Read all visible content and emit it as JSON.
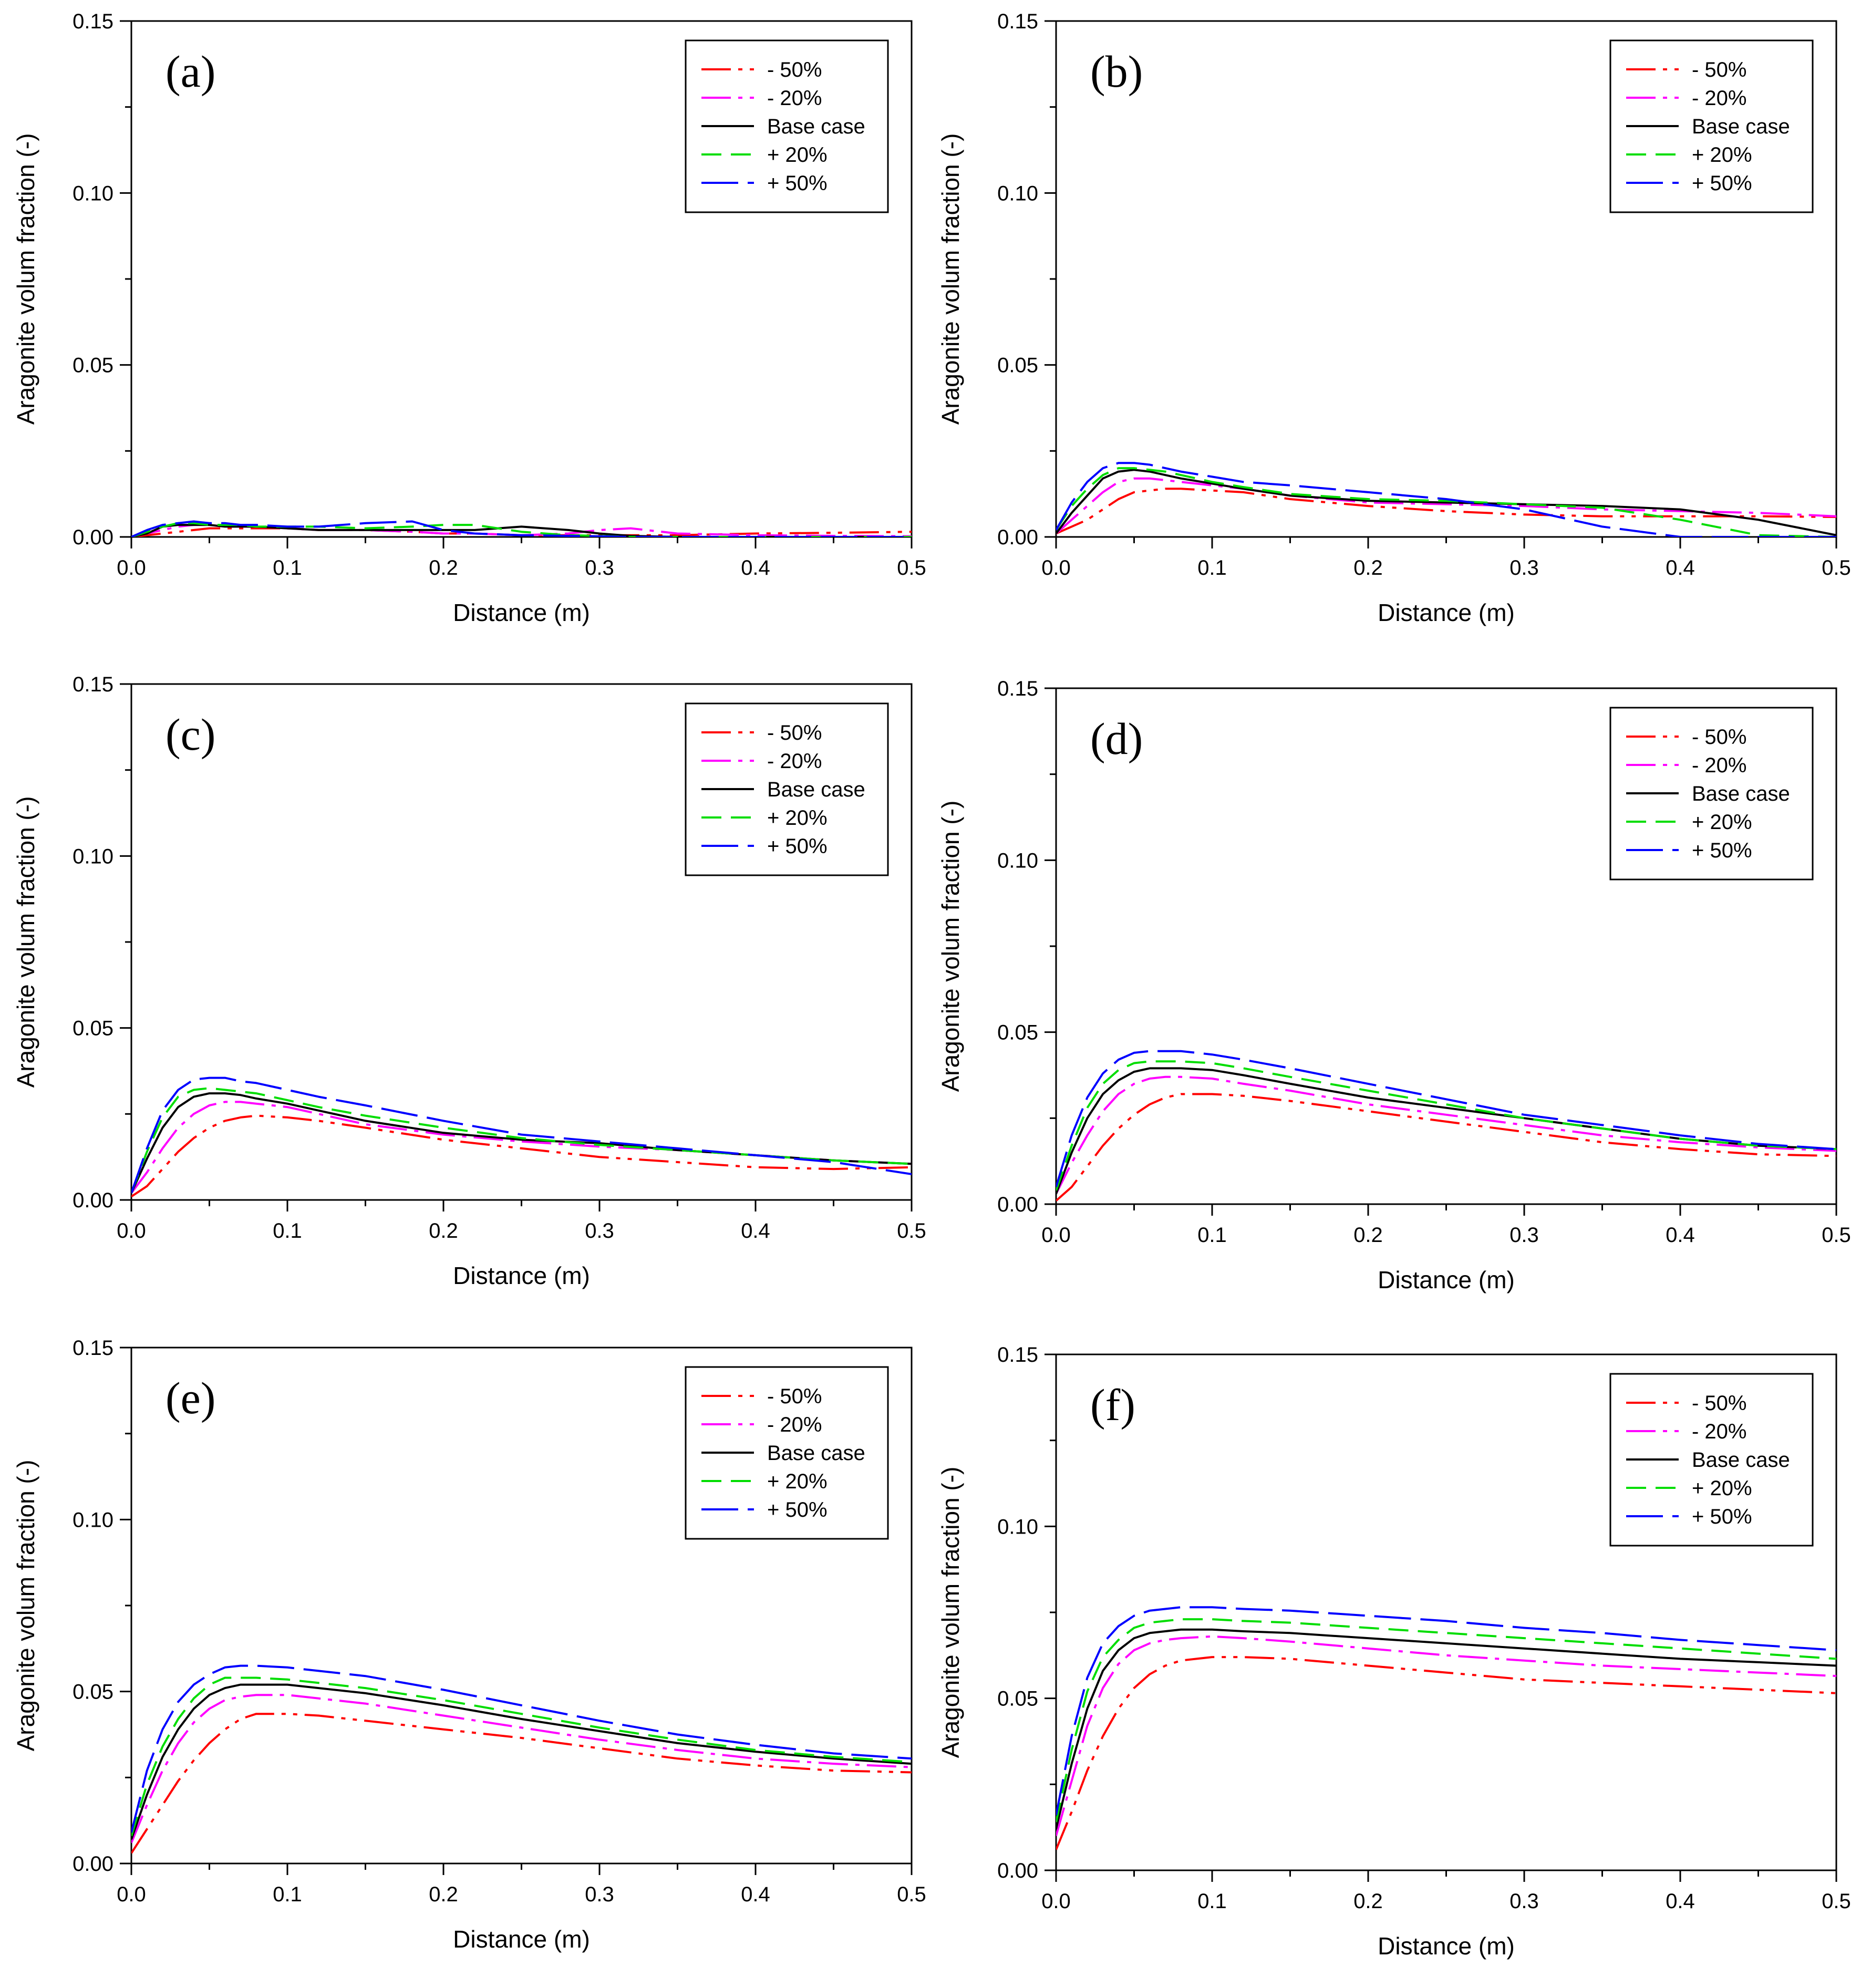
{
  "figure": {
    "panel_count": 6
  },
  "colors": {
    "minus50": "#ff0000",
    "minus20": "#ff00ff",
    "base": "#000000",
    "plus20": "#00dd00",
    "plus50": "#0000ff"
  },
  "chart_data": [
    {
      "type": "line",
      "panel_label": "(a)",
      "xlabel": "Distance (m)",
      "ylabel": "Aragonite volum fraction (-)",
      "xlim": [
        0,
        0.5
      ],
      "ylim": [
        0,
        0.15
      ],
      "xticks": [
        "0.0",
        "0.1",
        "0.2",
        "0.3",
        "0.4",
        "0.5"
      ],
      "yticks": [
        "0.00",
        "0.05",
        "0.10",
        "0.15"
      ],
      "legend_position": "top-right",
      "x": [
        0,
        0.01,
        0.02,
        0.03,
        0.04,
        0.05,
        0.06,
        0.07,
        0.08,
        0.1,
        0.12,
        0.15,
        0.18,
        0.2,
        0.22,
        0.25,
        0.28,
        0.3,
        0.32,
        0.35,
        0.4,
        0.45,
        0.5
      ],
      "series": [
        {
          "name": "- 50%",
          "key": "minus50",
          "values": [
            0,
            0.0005,
            0.001,
            0.0015,
            0.002,
            0.0025,
            0.0025,
            0.0025,
            0.0025,
            0.0025,
            0.002,
            0.002,
            0.0015,
            0.001,
            0.001,
            0.0005,
            0.0005,
            0.0005,
            0.0005,
            0.0005,
            0.001,
            0.0012,
            0.0015
          ]
        },
        {
          "name": "- 20%",
          "key": "minus20",
          "values": [
            0,
            0.001,
            0.002,
            0.003,
            0.0035,
            0.0035,
            0.003,
            0.003,
            0.003,
            0.0025,
            0.002,
            0.002,
            0.0015,
            0.001,
            0.001,
            0.0005,
            0.001,
            0.002,
            0.0025,
            0.001,
            0.0005,
            0.0003,
            0.0002
          ]
        },
        {
          "name": "Base case",
          "key": "base",
          "values": [
            0,
            0.001,
            0.003,
            0.0035,
            0.0035,
            0.0035,
            0.003,
            0.003,
            0.003,
            0.0025,
            0.002,
            0.002,
            0.002,
            0.002,
            0.002,
            0.003,
            0.002,
            0.001,
            0.0003,
            0,
            0,
            0,
            0
          ]
        },
        {
          "name": "+ 20%",
          "key": "plus20",
          "values": [
            0,
            0.0015,
            0.003,
            0.004,
            0.004,
            0.0035,
            0.0035,
            0.0035,
            0.003,
            0.003,
            0.003,
            0.0025,
            0.003,
            0.0035,
            0.0035,
            0.0015,
            0.0005,
            0.0003,
            0,
            0,
            0,
            0,
            0
          ]
        },
        {
          "name": "+ 50%",
          "key": "plus50",
          "values": [
            0,
            0.002,
            0.0035,
            0.004,
            0.0045,
            0.004,
            0.004,
            0.0035,
            0.0035,
            0.003,
            0.003,
            0.004,
            0.0045,
            0.002,
            0.001,
            0.0005,
            0.0003,
            0.0002,
            0,
            0,
            0,
            0,
            0
          ]
        }
      ]
    },
    {
      "type": "line",
      "panel_label": "(b)",
      "xlabel": "Distance (m)",
      "ylabel": "Aragonite volum fraction (-)",
      "xlim": [
        0,
        0.5
      ],
      "ylim": [
        0,
        0.15
      ],
      "xticks": [
        "0.0",
        "0.1",
        "0.2",
        "0.3",
        "0.4",
        "0.5"
      ],
      "yticks": [
        "0.00",
        "0.05",
        "0.10",
        "0.15"
      ],
      "legend_position": "top-right",
      "x": [
        0,
        0.01,
        0.02,
        0.03,
        0.04,
        0.05,
        0.06,
        0.07,
        0.08,
        0.1,
        0.12,
        0.15,
        0.2,
        0.25,
        0.3,
        0.35,
        0.4,
        0.45,
        0.5
      ],
      "series": [
        {
          "name": "- 50%",
          "key": "minus50",
          "values": [
            0.001,
            0.003,
            0.005,
            0.008,
            0.011,
            0.013,
            0.0135,
            0.014,
            0.014,
            0.0135,
            0.013,
            0.011,
            0.009,
            0.0075,
            0.0065,
            0.006,
            0.006,
            0.006,
            0.0058
          ]
        },
        {
          "name": "- 20%",
          "key": "minus20",
          "values": [
            0.001,
            0.005,
            0.009,
            0.013,
            0.016,
            0.017,
            0.017,
            0.0165,
            0.016,
            0.015,
            0.014,
            0.012,
            0.01,
            0.0095,
            0.009,
            0.008,
            0.0075,
            0.007,
            0.006
          ]
        },
        {
          "name": "Base case",
          "key": "base",
          "values": [
            0.001,
            0.007,
            0.012,
            0.017,
            0.019,
            0.0195,
            0.019,
            0.018,
            0.017,
            0.0155,
            0.014,
            0.012,
            0.0105,
            0.01,
            0.0095,
            0.009,
            0.008,
            0.005,
            0.0005
          ]
        },
        {
          "name": "+ 20%",
          "key": "plus20",
          "values": [
            0.002,
            0.009,
            0.014,
            0.018,
            0.02,
            0.02,
            0.0195,
            0.019,
            0.018,
            0.016,
            0.0145,
            0.0125,
            0.011,
            0.0105,
            0.0095,
            0.0085,
            0.005,
            0.0005,
            0
          ]
        },
        {
          "name": "+ 50%",
          "key": "plus50",
          "values": [
            0.002,
            0.01,
            0.016,
            0.02,
            0.0215,
            0.0215,
            0.021,
            0.02,
            0.019,
            0.0175,
            0.016,
            0.015,
            0.013,
            0.011,
            0.008,
            0.003,
            0,
            0,
            0
          ]
        }
      ]
    },
    {
      "type": "line",
      "panel_label": "(c)",
      "xlabel": "Distance (m)",
      "ylabel": "Aragonite volum fraction (-)",
      "xlim": [
        0,
        0.5
      ],
      "ylim": [
        0,
        0.15
      ],
      "xticks": [
        "0.0",
        "0.1",
        "0.2",
        "0.3",
        "0.4",
        "0.5"
      ],
      "yticks": [
        "0.00",
        "0.05",
        "0.10",
        "0.15"
      ],
      "legend_position": "top-right",
      "x": [
        0,
        0.01,
        0.02,
        0.03,
        0.04,
        0.05,
        0.06,
        0.07,
        0.08,
        0.1,
        0.12,
        0.15,
        0.2,
        0.25,
        0.3,
        0.35,
        0.4,
        0.45,
        0.5
      ],
      "series": [
        {
          "name": "- 50%",
          "key": "minus50",
          "values": [
            0.001,
            0.004,
            0.009,
            0.014,
            0.018,
            0.021,
            0.023,
            0.024,
            0.0245,
            0.024,
            0.023,
            0.021,
            0.0175,
            0.015,
            0.0125,
            0.011,
            0.0095,
            0.009,
            0.0095
          ]
        },
        {
          "name": "- 20%",
          "key": "minus20",
          "values": [
            0.002,
            0.008,
            0.015,
            0.021,
            0.025,
            0.0275,
            0.0285,
            0.0285,
            0.028,
            0.027,
            0.025,
            0.022,
            0.019,
            0.017,
            0.0155,
            0.0145,
            0.013,
            0.0115,
            0.0105
          ]
        },
        {
          "name": "Base case",
          "key": "base",
          "values": [
            0.002,
            0.012,
            0.021,
            0.027,
            0.03,
            0.031,
            0.031,
            0.0305,
            0.0295,
            0.028,
            0.026,
            0.023,
            0.0195,
            0.0175,
            0.0165,
            0.0145,
            0.013,
            0.0115,
            0.0105
          ]
        },
        {
          "name": "+ 20%",
          "key": "plus20",
          "values": [
            0.002,
            0.014,
            0.024,
            0.03,
            0.032,
            0.0325,
            0.032,
            0.0315,
            0.031,
            0.029,
            0.027,
            0.0245,
            0.021,
            0.018,
            0.016,
            0.0145,
            0.013,
            0.0115,
            0.0105
          ]
        },
        {
          "name": "+ 50%",
          "key": "plus50",
          "values": [
            0.002,
            0.015,
            0.026,
            0.032,
            0.035,
            0.0355,
            0.0355,
            0.0345,
            0.034,
            0.032,
            0.03,
            0.0275,
            0.023,
            0.019,
            0.017,
            0.015,
            0.013,
            0.011,
            0.0075
          ]
        }
      ]
    },
    {
      "type": "line",
      "panel_label": "(d)",
      "xlabel": "Distance (m)",
      "ylabel": "Aragonite volum fraction (-)",
      "xlim": [
        0,
        0.5
      ],
      "ylim": [
        0,
        0.15
      ],
      "xticks": [
        "0.0",
        "0.1",
        "0.2",
        "0.3",
        "0.4",
        "0.5"
      ],
      "yticks": [
        "0.00",
        "0.05",
        "0.10",
        "0.15"
      ],
      "legend_position": "top-right",
      "x": [
        0,
        0.01,
        0.02,
        0.03,
        0.04,
        0.05,
        0.06,
        0.07,
        0.08,
        0.1,
        0.12,
        0.15,
        0.2,
        0.25,
        0.3,
        0.35,
        0.4,
        0.45,
        0.5
      ],
      "series": [
        {
          "name": "- 50%",
          "key": "minus50",
          "values": [
            0.001,
            0.005,
            0.011,
            0.017,
            0.022,
            0.026,
            0.029,
            0.031,
            0.032,
            0.032,
            0.0315,
            0.03,
            0.027,
            0.024,
            0.021,
            0.018,
            0.016,
            0.0145,
            0.014
          ]
        },
        {
          "name": "- 20%",
          "key": "minus20",
          "values": [
            0.003,
            0.012,
            0.02,
            0.027,
            0.032,
            0.035,
            0.0365,
            0.037,
            0.037,
            0.0365,
            0.035,
            0.033,
            0.029,
            0.026,
            0.023,
            0.02,
            0.018,
            0.0165,
            0.0155
          ]
        },
        {
          "name": "Base case",
          "key": "base",
          "values": [
            0.003,
            0.015,
            0.025,
            0.032,
            0.036,
            0.0385,
            0.0395,
            0.0395,
            0.0395,
            0.039,
            0.0375,
            0.035,
            0.031,
            0.028,
            0.025,
            0.022,
            0.019,
            0.017,
            0.016
          ]
        },
        {
          "name": "+ 20%",
          "key": "plus20",
          "values": [
            0.004,
            0.017,
            0.028,
            0.035,
            0.039,
            0.041,
            0.0415,
            0.0415,
            0.0415,
            0.041,
            0.0395,
            0.037,
            0.033,
            0.029,
            0.025,
            0.022,
            0.019,
            0.017,
            0.016
          ]
        },
        {
          "name": "+ 50%",
          "key": "plus50",
          "values": [
            0.005,
            0.02,
            0.031,
            0.038,
            0.042,
            0.044,
            0.0445,
            0.0445,
            0.0445,
            0.0435,
            0.042,
            0.0395,
            0.035,
            0.0305,
            0.026,
            0.023,
            0.02,
            0.0175,
            0.016
          ]
        }
      ]
    },
    {
      "type": "line",
      "panel_label": "(e)",
      "xlabel": "Distance (m)",
      "ylabel": "Aragonite volum fraction (-)",
      "xlim": [
        0,
        0.5
      ],
      "ylim": [
        0,
        0.15
      ],
      "xticks": [
        "0.0",
        "0.1",
        "0.2",
        "0.3",
        "0.4",
        "0.5"
      ],
      "yticks": [
        "0.00",
        "0.05",
        "0.10",
        "0.15"
      ],
      "legend_position": "top-right",
      "x": [
        0,
        0.01,
        0.02,
        0.03,
        0.04,
        0.05,
        0.06,
        0.07,
        0.08,
        0.1,
        0.12,
        0.15,
        0.2,
        0.25,
        0.3,
        0.35,
        0.4,
        0.45,
        0.5
      ],
      "series": [
        {
          "name": "- 50%",
          "key": "minus50",
          "values": [
            0.003,
            0.01,
            0.017,
            0.024,
            0.03,
            0.035,
            0.039,
            0.042,
            0.0435,
            0.0435,
            0.043,
            0.0415,
            0.039,
            0.0365,
            0.0335,
            0.0305,
            0.0285,
            0.027,
            0.0265
          ]
        },
        {
          "name": "- 20%",
          "key": "minus20",
          "values": [
            0.006,
            0.017,
            0.027,
            0.035,
            0.041,
            0.045,
            0.0475,
            0.0485,
            0.049,
            0.049,
            0.048,
            0.0465,
            0.043,
            0.0395,
            0.036,
            0.033,
            0.0305,
            0.029,
            0.028
          ]
        },
        {
          "name": "Base case",
          "key": "base",
          "values": [
            0.007,
            0.02,
            0.031,
            0.039,
            0.045,
            0.049,
            0.051,
            0.052,
            0.052,
            0.052,
            0.051,
            0.0495,
            0.046,
            0.042,
            0.0385,
            0.035,
            0.0325,
            0.0305,
            0.029
          ]
        },
        {
          "name": "+ 20%",
          "key": "plus20",
          "values": [
            0.008,
            0.023,
            0.034,
            0.042,
            0.048,
            0.052,
            0.054,
            0.054,
            0.054,
            0.0535,
            0.0525,
            0.051,
            0.0475,
            0.0435,
            0.0395,
            0.036,
            0.033,
            0.031,
            0.0295
          ]
        },
        {
          "name": "+ 50%",
          "key": "plus50",
          "values": [
            0.009,
            0.027,
            0.039,
            0.047,
            0.052,
            0.055,
            0.057,
            0.0575,
            0.0575,
            0.057,
            0.056,
            0.0545,
            0.0505,
            0.046,
            0.0415,
            0.0375,
            0.0345,
            0.032,
            0.0305
          ]
        }
      ]
    },
    {
      "type": "line",
      "panel_label": "(f)",
      "xlabel": "Distance (m)",
      "ylabel": "Aragonite volum fraction (-)",
      "xlim": [
        0,
        0.5
      ],
      "ylim": [
        0,
        0.15
      ],
      "xticks": [
        "0.0",
        "0.1",
        "0.2",
        "0.3",
        "0.4",
        "0.5"
      ],
      "yticks": [
        "0.00",
        "0.05",
        "0.10",
        "0.15"
      ],
      "legend_position": "top-right",
      "x": [
        0,
        0.01,
        0.02,
        0.03,
        0.04,
        0.05,
        0.06,
        0.07,
        0.08,
        0.1,
        0.12,
        0.15,
        0.2,
        0.25,
        0.3,
        0.35,
        0.4,
        0.45,
        0.5
      ],
      "series": [
        {
          "name": "- 50%",
          "key": "minus50",
          "values": [
            0.006,
            0.017,
            0.029,
            0.039,
            0.047,
            0.053,
            0.057,
            0.0595,
            0.061,
            0.062,
            0.062,
            0.0615,
            0.0595,
            0.0575,
            0.0555,
            0.0545,
            0.0535,
            0.0525,
            0.0515
          ]
        },
        {
          "name": "- 20%",
          "key": "minus20",
          "values": [
            0.01,
            0.026,
            0.042,
            0.053,
            0.06,
            0.064,
            0.066,
            0.067,
            0.0675,
            0.068,
            0.0675,
            0.0665,
            0.0645,
            0.0625,
            0.061,
            0.0595,
            0.0585,
            0.0575,
            0.0565
          ]
        },
        {
          "name": "Base case",
          "key": "base",
          "values": [
            0.012,
            0.031,
            0.047,
            0.058,
            0.064,
            0.0675,
            0.069,
            0.0695,
            0.07,
            0.07,
            0.0695,
            0.069,
            0.0675,
            0.066,
            0.0645,
            0.063,
            0.0615,
            0.0605,
            0.0595
          ]
        },
        {
          "name": "+ 20%",
          "key": "plus20",
          "values": [
            0.014,
            0.035,
            0.052,
            0.062,
            0.067,
            0.0705,
            0.072,
            0.0725,
            0.073,
            0.073,
            0.0725,
            0.072,
            0.0705,
            0.069,
            0.0675,
            0.066,
            0.0645,
            0.063,
            0.0615
          ]
        },
        {
          "name": "+ 50%",
          "key": "plus50",
          "values": [
            0.016,
            0.039,
            0.056,
            0.066,
            0.071,
            0.074,
            0.0755,
            0.076,
            0.0765,
            0.0765,
            0.076,
            0.0755,
            0.074,
            0.0725,
            0.0705,
            0.069,
            0.067,
            0.0655,
            0.064
          ]
        }
      ]
    }
  ]
}
